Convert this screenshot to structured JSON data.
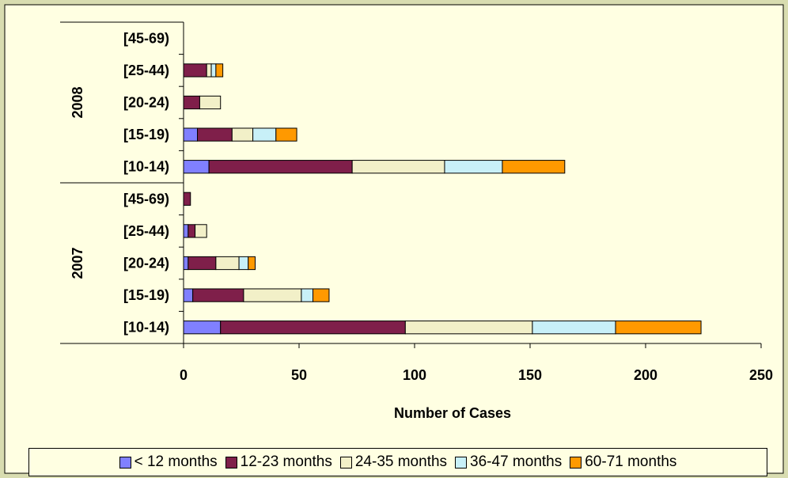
{
  "chart_data": {
    "type": "bar",
    "orientation": "horizontal",
    "stacked": true,
    "xlabel": "Number of Cases",
    "xlim": [
      0,
      250
    ],
    "xticks": [
      0,
      50,
      100,
      150,
      200,
      250
    ],
    "groups": [
      {
        "name": "2008",
        "categories": [
          "[45-69)",
          "[25-44)",
          "[20-24)",
          "[15-19)",
          "[10-14)"
        ]
      },
      {
        "name": "2007",
        "categories": [
          "[45-69)",
          "[25-44)",
          "[20-24)",
          "[15-19)",
          "[10-14)"
        ]
      }
    ],
    "series": [
      {
        "name": "< 12 months",
        "color": "#8080ff",
        "values": [
          0,
          0,
          0,
          6,
          11,
          0,
          2,
          2,
          4,
          16
        ]
      },
      {
        "name": "12-23 months",
        "color": "#7f1f4a",
        "values": [
          0,
          10,
          7,
          15,
          62,
          3,
          3,
          12,
          22,
          80
        ]
      },
      {
        "name": "24-35 months",
        "color": "#f2f0c8",
        "values": [
          0,
          2,
          9,
          9,
          40,
          0,
          5,
          10,
          25,
          55
        ]
      },
      {
        "name": "36-47 months",
        "color": "#c8f0f8",
        "values": [
          0,
          2,
          0,
          10,
          25,
          0,
          0,
          4,
          5,
          36
        ]
      },
      {
        "name": "60-71 months",
        "color": "#ff9900",
        "values": [
          0,
          3,
          0,
          9,
          27,
          0,
          0,
          3,
          7,
          37
        ]
      }
    ],
    "legend_position": "bottom",
    "grid": false
  }
}
